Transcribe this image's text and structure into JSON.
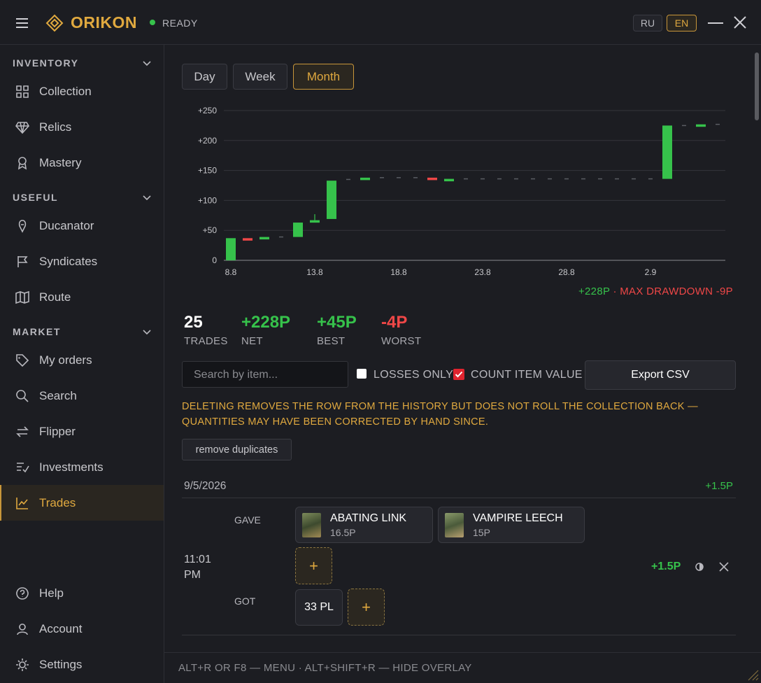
{
  "header": {
    "brand": "ORIKON",
    "status": "READY",
    "languages": [
      "RU",
      "EN"
    ]
  },
  "sidebar": {
    "sections": [
      {
        "title": "INVENTORY",
        "items": [
          "Collection",
          "Relics",
          "Mastery"
        ]
      },
      {
        "title": "USEFUL",
        "items": [
          "Ducanator",
          "Syndicates",
          "Route"
        ]
      },
      {
        "title": "MARKET",
        "items": [
          "My orders",
          "Search",
          "Flipper",
          "Investments",
          "Trades"
        ]
      }
    ],
    "bottom": [
      "Help",
      "Account",
      "Settings"
    ]
  },
  "periods": [
    "Day",
    "Week",
    "Month"
  ],
  "chart_data": {
    "type": "candlestick",
    "categories": [
      "8.8",
      null,
      null,
      null,
      null,
      "13.8",
      null,
      null,
      null,
      null,
      "18.8",
      null,
      null,
      null,
      null,
      "23.8",
      null,
      null,
      null,
      null,
      "28.8",
      null,
      null,
      null,
      null,
      "2.9",
      null,
      null,
      null,
      null
    ],
    "open": [
      0,
      37,
      35,
      39,
      39,
      66,
      69,
      135,
      135,
      138,
      138,
      138,
      138,
      135,
      136,
      136,
      136,
      136,
      136,
      136,
      136,
      136,
      136,
      136,
      136,
      136,
      136,
      225,
      225,
      227
    ],
    "close": [
      37,
      35,
      39,
      39,
      63,
      67,
      133,
      135,
      138,
      138,
      138,
      138,
      135,
      136,
      136,
      136,
      136,
      136,
      136,
      136,
      136,
      136,
      136,
      136,
      136,
      136,
      225,
      225,
      227,
      227
    ],
    "high": [
      null,
      null,
      null,
      null,
      null,
      77,
      null,
      null,
      null,
      null,
      null,
      null,
      null,
      null,
      null,
      null,
      null,
      null,
      null,
      null,
      null,
      null,
      null,
      null,
      null,
      null,
      null,
      null,
      null,
      null
    ],
    "colors": {
      "up": "#36c24b",
      "down": "#ef4747",
      "flat": "#5a5d63"
    },
    "ylim": [
      0,
      250
    ],
    "yticks": [
      0,
      {
        "value": 50,
        "label": "+50"
      },
      {
        "value": 100,
        "label": "+100"
      },
      {
        "value": 150,
        "label": "+150"
      },
      {
        "value": 200,
        "label": "+200"
      },
      {
        "value": 250,
        "label": "+250"
      }
    ],
    "grid": true
  },
  "chart_summary": {
    "total": "+228P",
    "drawdown": "· MAX DRAWDOWN -9P"
  },
  "stats": [
    {
      "value": 25,
      "label": "TRADES"
    },
    {
      "value": "+228P",
      "label": "NET"
    },
    {
      "value": "+45P",
      "label": "BEST"
    },
    {
      "value": "-4P",
      "label": "WORST"
    }
  ],
  "filters": {
    "search_placeholder": "Search by item...",
    "losses_only": "LOSSES ONLY",
    "count_item_value": "COUNT ITEM VALUE",
    "export": "Export CSV"
  },
  "warning": "DELETING REMOVES THE ROW FROM THE HISTORY BUT DOES NOT ROLL THE COLLECTION BACK — QUANTITIES MAY HAVE BEEN CORRECTED BY HAND SINCE.",
  "remove_duplicates": "remove duplicates",
  "trades": [
    {
      "date": "9/5/2026",
      "day_total": "+1.5P",
      "entries": [
        {
          "time": "11:01 PM",
          "gave_label": "GAVE",
          "gave": [
            {
              "name": "ABATING LINK",
              "price": "16.5P"
            },
            {
              "name": "VAMPIRE LEECH",
              "price": "15P"
            }
          ],
          "got_label": "GOT",
          "got": [
            {
              "name": "33 PL"
            }
          ],
          "add": "+",
          "result": "+1.5P"
        }
      ]
    }
  ],
  "footer": "ALT+R OR F8 — MENU · ALT+SHIFT+R — HIDE OVERLAY"
}
